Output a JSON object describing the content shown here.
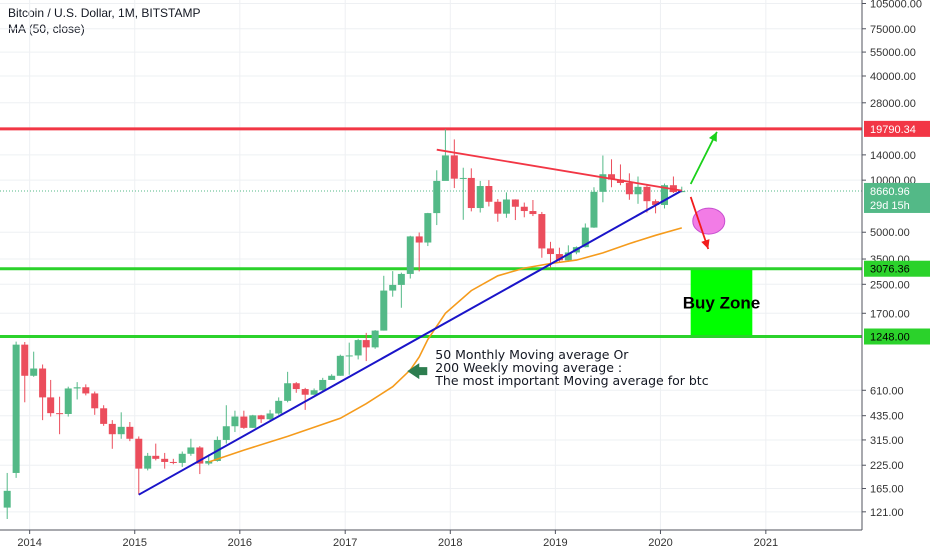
{
  "header": {
    "title": "Bitcoin / U.S. Dollar, 1M, BITSTAMP",
    "indicator": "MA (50, close)"
  },
  "colors": {
    "up": "#53b987",
    "down": "#eb4d5c",
    "ma": "#f59b1c",
    "trend": "#1a14c9",
    "resistance": "#f23645",
    "support": "#2bd22b",
    "buyzone": "#00ff00"
  },
  "chart_data": {
    "type": "candlestick",
    "title": "Bitcoin / U.S. Dollar, 1M, BITSTAMP",
    "scale": "log",
    "ylim": [
      95,
      110000
    ],
    "xlim": [
      "2013-09-20",
      "2021-12-01"
    ],
    "x_ticks": [
      "2014",
      "2015",
      "2016",
      "2017",
      "2018",
      "2019",
      "2020",
      "2021"
    ],
    "y_ticks": [
      105000,
      75000,
      55000,
      40000,
      28000,
      14000,
      10000,
      5000,
      3500,
      2500,
      1700,
      610,
      435,
      315,
      225,
      165,
      121
    ],
    "y_tick_labels": [
      "105000.00",
      "75000.00",
      "55000.00",
      "40000.00",
      "28000.00",
      "14000.00",
      "10000.00",
      "5000.00",
      "3500.00",
      "2500.00",
      "1700.00",
      "610.00",
      "435.00",
      "315.00",
      "225.00",
      "165.00",
      "121.00"
    ],
    "candles": [
      [
        "2013-10",
        128,
        160,
        110,
        203
      ],
      [
        "2013-11",
        203,
        1120,
        190,
        1165
      ],
      [
        "2013-12",
        1120,
        740,
        520,
        1160
      ],
      [
        "2014-01",
        740,
        815,
        730,
        1020
      ],
      [
        "2014-02",
        815,
        555,
        410,
        860
      ],
      [
        "2014-03",
        555,
        450,
        430,
        700
      ],
      [
        "2014-04",
        450,
        445,
        340,
        560
      ],
      [
        "2014-05",
        445,
        625,
        430,
        640
      ],
      [
        "2014-06",
        625,
        635,
        540,
        680
      ],
      [
        "2014-07",
        635,
        585,
        570,
        660
      ],
      [
        "2014-08",
        585,
        480,
        440,
        600
      ],
      [
        "2014-09",
        480,
        390,
        380,
        500
      ],
      [
        "2014-10",
        390,
        340,
        280,
        410
      ],
      [
        "2014-11",
        340,
        375,
        320,
        455
      ],
      [
        "2014-12",
        375,
        320,
        310,
        400
      ],
      [
        "2015-01",
        320,
        215,
        152,
        330
      ],
      [
        "2015-02",
        215,
        255,
        210,
        265
      ],
      [
        "2015-03",
        255,
        245,
        240,
        300
      ],
      [
        "2015-04",
        245,
        235,
        215,
        265
      ],
      [
        "2015-05",
        235,
        232,
        228,
        245
      ],
      [
        "2015-06",
        232,
        262,
        220,
        270
      ],
      [
        "2015-07",
        262,
        285,
        255,
        320
      ],
      [
        "2015-08",
        285,
        230,
        200,
        290
      ],
      [
        "2015-09",
        230,
        238,
        225,
        260
      ],
      [
        "2015-10",
        238,
        315,
        236,
        330
      ],
      [
        "2015-11",
        315,
        378,
        300,
        500
      ],
      [
        "2015-12",
        378,
        430,
        350,
        465
      ],
      [
        "2016-01",
        430,
        370,
        365,
        465
      ],
      [
        "2016-02",
        370,
        437,
        370,
        440
      ],
      [
        "2016-03",
        437,
        415,
        395,
        440
      ],
      [
        "2016-04",
        415,
        448,
        410,
        470
      ],
      [
        "2016-05",
        448,
        530,
        440,
        555
      ],
      [
        "2016-06",
        530,
        670,
        520,
        780
      ],
      [
        "2016-07",
        670,
        620,
        590,
        680
      ],
      [
        "2016-08",
        620,
        575,
        470,
        630
      ],
      [
        "2016-09",
        575,
        610,
        575,
        625
      ],
      [
        "2016-10",
        610,
        700,
        600,
        720
      ],
      [
        "2016-11",
        700,
        740,
        700,
        755
      ],
      [
        "2016-12",
        740,
        965,
        740,
        980
      ],
      [
        "2017-01",
        965,
        970,
        750,
        1150
      ],
      [
        "2017-02",
        970,
        1190,
        920,
        1210
      ],
      [
        "2017-03",
        1190,
        1080,
        900,
        1310
      ],
      [
        "2017-04",
        1080,
        1350,
        1060,
        1360
      ],
      [
        "2017-05",
        1350,
        2300,
        1350,
        2800
      ],
      [
        "2017-06",
        2300,
        2480,
        2120,
        2980
      ],
      [
        "2017-07",
        2480,
        2870,
        1830,
        2920
      ],
      [
        "2017-08",
        2870,
        4730,
        2700,
        4770
      ],
      [
        "2017-09",
        4730,
        4360,
        2970,
        4980
      ],
      [
        "2017-10",
        4360,
        6450,
        4160,
        6470
      ],
      [
        "2017-11",
        6450,
        9900,
        5500,
        11400
      ],
      [
        "2017-12",
        9900,
        13900,
        10000,
        19700
      ],
      [
        "2018-01",
        13900,
        10200,
        9000,
        17200
      ],
      [
        "2018-02",
        10200,
        10300,
        5900,
        11800
      ],
      [
        "2018-03",
        10300,
        6900,
        6600,
        11700
      ],
      [
        "2018-04",
        6900,
        9250,
        6500,
        9900
      ],
      [
        "2018-05",
        9250,
        7500,
        7050,
        10000
      ],
      [
        "2018-06",
        7500,
        6400,
        5750,
        7770
      ],
      [
        "2018-07",
        6400,
        7730,
        6060,
        8500
      ],
      [
        "2018-08",
        7730,
        7020,
        5880,
        7750
      ],
      [
        "2018-09",
        7020,
        6630,
        6100,
        7420
      ],
      [
        "2018-10",
        6630,
        6370,
        6200,
        7680
      ],
      [
        "2018-11",
        6370,
        4030,
        3560,
        6550
      ],
      [
        "2018-12",
        4030,
        3740,
        3130,
        4400
      ],
      [
        "2019-01",
        3740,
        3440,
        3350,
        4070
      ],
      [
        "2019-02",
        3440,
        3820,
        3380,
        4200
      ],
      [
        "2019-03",
        3820,
        4100,
        3730,
        4140
      ],
      [
        "2019-04",
        4100,
        5320,
        4080,
        5620
      ],
      [
        "2019-05",
        5320,
        8560,
        5300,
        9100
      ],
      [
        "2019-06",
        8560,
        10820,
        7450,
        13880
      ],
      [
        "2019-07",
        10820,
        10080,
        9100,
        13200
      ],
      [
        "2019-08",
        10080,
        9630,
        9350,
        12330
      ],
      [
        "2019-09",
        9630,
        8290,
        7700,
        10950
      ],
      [
        "2019-10",
        8290,
        9150,
        7300,
        10500
      ],
      [
        "2019-11",
        9150,
        7560,
        6500,
        9510
      ],
      [
        "2019-12",
        7560,
        7190,
        6430,
        7740
      ],
      [
        "2020-01",
        7190,
        9350,
        6860,
        9560
      ],
      [
        "2020-02",
        9350,
        8530,
        8430,
        10500
      ],
      [
        "2020-03",
        8530,
        8660,
        8500,
        9170
      ]
    ],
    "ma50": [
      [
        "2015-09",
        235
      ],
      [
        "2016-01",
        275
      ],
      [
        "2016-06",
        330
      ],
      [
        "2016-12",
        420
      ],
      [
        "2017-03",
        510
      ],
      [
        "2017-06",
        640
      ],
      [
        "2017-08",
        800
      ],
      [
        "2017-09",
        950
      ],
      [
        "2017-10",
        1200
      ],
      [
        "2017-12",
        1700
      ],
      [
        "2018-03",
        2300
      ],
      [
        "2018-06",
        2800
      ],
      [
        "2018-09",
        3100
      ],
      [
        "2018-12",
        3300
      ],
      [
        "2019-03",
        3450
      ],
      [
        "2019-06",
        3800
      ],
      [
        "2019-09",
        4300
      ],
      [
        "2019-12",
        4800
      ],
      [
        "2020-03",
        5300
      ]
    ],
    "trendlines": [
      {
        "kind": "support",
        "from": [
          "2015-01",
          152
        ],
        "to": [
          "2020-03",
          8700
        ]
      },
      {
        "kind": "resistance",
        "from": [
          "2017-11",
          15000
        ],
        "to": [
          "2020-03",
          8700
        ]
      }
    ],
    "arrows": [
      {
        "color": "green",
        "from": [
          "2020-04",
          9500
        ],
        "to": [
          "2020-07",
          19000
        ]
      },
      {
        "color": "red",
        "from": [
          "2020-04",
          8000
        ],
        "to": [
          "2020-06",
          4000
        ]
      }
    ],
    "highlight_circle": {
      "x": "2020-03",
      "y": 5800
    },
    "levels": [
      {
        "price": 19790.34,
        "label": "19790.34",
        "kind": "resistance"
      },
      {
        "price": 3076.36,
        "label": "3076.36",
        "kind": "support"
      },
      {
        "price": 1248.0,
        "label": "1248.00",
        "kind": "support"
      }
    ],
    "current_price": {
      "price": 8660.96,
      "label": "8660.96",
      "countdown": "29d 15h"
    },
    "buy_zone": {
      "label": "Buy Zone",
      "top": 3076.36,
      "bottom": 1248.0,
      "from": "2020-04",
      "to": "2020-11"
    },
    "annotation": {
      "lines": [
        "50 Monthly Moving average Or",
        "200 Weekly moving average :",
        "The most important Moving average for btc"
      ]
    }
  }
}
